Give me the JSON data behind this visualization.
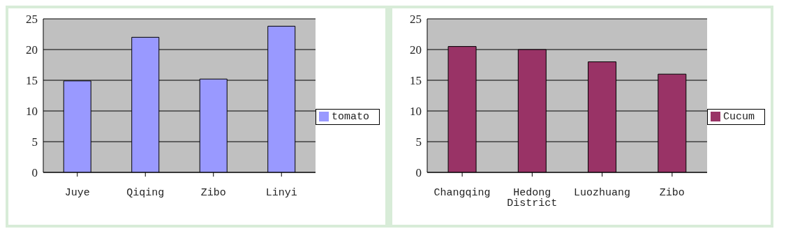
{
  "chart_data": [
    {
      "type": "bar",
      "categories": [
        "Juye",
        "Qiqing",
        "Zibo",
        "Linyi"
      ],
      "series": [
        {
          "name": "tomato",
          "color": "#9999ff",
          "values": [
            14.9,
            22,
            15.2,
            23.8
          ]
        }
      ],
      "ylim": [
        0,
        25
      ],
      "yticks": [
        0,
        5,
        10,
        15,
        20,
        25
      ],
      "grid": "y",
      "legend": "right"
    },
    {
      "type": "bar",
      "categories": [
        "Changqing",
        "Hedong District",
        "Luozhuang",
        "Zibo"
      ],
      "series": [
        {
          "name": "Cucum",
          "color": "#993366",
          "values": [
            20.5,
            20,
            18,
            16
          ]
        }
      ],
      "ylim": [
        0,
        25
      ],
      "yticks": [
        0,
        5,
        10,
        15,
        20,
        25
      ],
      "grid": "y",
      "legend": "right"
    }
  ]
}
